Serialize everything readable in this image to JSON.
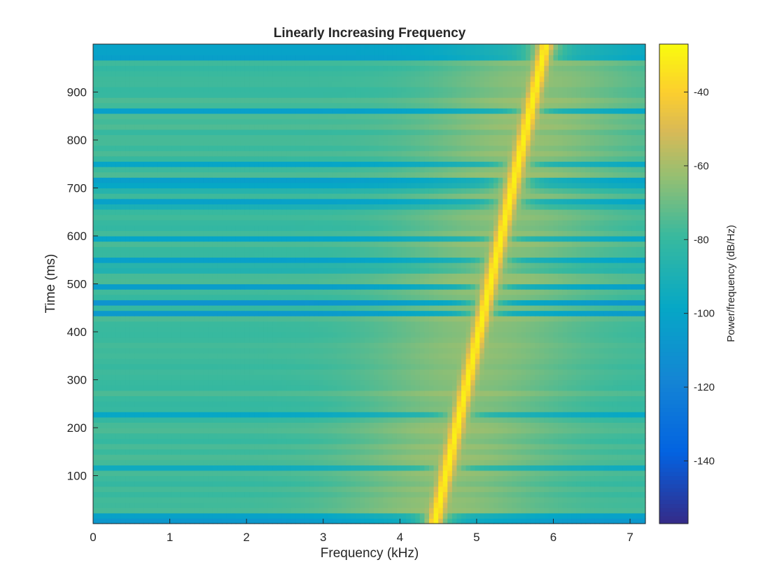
{
  "chart_data": {
    "type": "heatmap",
    "title": "Linearly Increasing Frequency",
    "xlabel": "Frequency (kHz)",
    "ylabel": "Time (ms)",
    "xlim": [
      0,
      7.2
    ],
    "ylim": [
      0,
      1000
    ],
    "xticks": [
      0,
      1,
      2,
      3,
      4,
      5,
      6,
      7
    ],
    "yticks": [
      100,
      200,
      300,
      400,
      500,
      600,
      700,
      800,
      900
    ],
    "grid": false,
    "colormap": "parula",
    "ridge": {
      "description": "peak power follows a linear chirp",
      "points": [
        {
          "time_ms": 0,
          "freq_khz": 4.45
        },
        {
          "time_ms": 1000,
          "freq_khz": 5.9
        }
      ],
      "peak_db": -30
    },
    "background_db": -78,
    "colorbar": {
      "label": "Power/frequency (dB/Hz)",
      "range": [
        -157,
        -27
      ],
      "ticks": [
        -40,
        -60,
        -80,
        -100,
        -120,
        -140
      ]
    }
  }
}
